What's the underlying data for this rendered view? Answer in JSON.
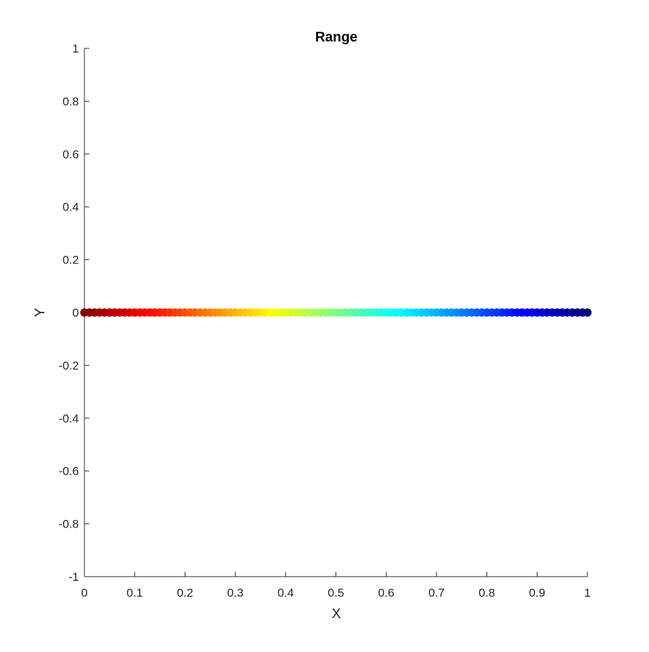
{
  "chart_data": {
    "type": "scatter",
    "title": "Range",
    "xlabel": "X",
    "ylabel": "Y",
    "xlim": [
      0,
      1
    ],
    "ylim": [
      -1,
      1
    ],
    "xticks": [
      0,
      0.1,
      0.2,
      0.3,
      0.4,
      0.5,
      0.6,
      0.7,
      0.8,
      0.9,
      1
    ],
    "xtick_labels": [
      "0",
      "0.1",
      "0.2",
      "0.3",
      "0.4",
      "0.5",
      "0.6",
      "0.7",
      "0.8",
      "0.9",
      "1"
    ],
    "yticks": [
      -1,
      -0.8,
      -0.6,
      -0.4,
      -0.2,
      0,
      0.2,
      0.4,
      0.6,
      0.8,
      1
    ],
    "ytick_labels": [
      "-1",
      "-0.8",
      "-0.6",
      "-0.4",
      "-0.2",
      "0",
      "0.2",
      "0.4",
      "0.6",
      "0.8",
      "1"
    ],
    "grid": false,
    "colormap": "jet-reversed",
    "colormap_stops": [
      "#800000",
      "#ff0000",
      "#ff8000",
      "#ffff00",
      "#80ff80",
      "#00ffff",
      "#0080ff",
      "#0000ff",
      "#000080"
    ],
    "series": [
      {
        "x_start": 0,
        "x_end": 1,
        "y": 0,
        "point_count": 101,
        "color_by": "x"
      }
    ]
  }
}
